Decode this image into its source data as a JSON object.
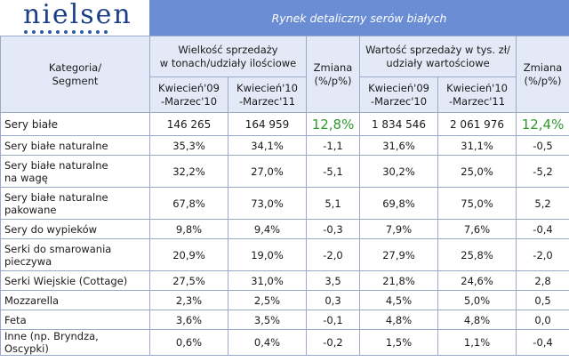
{
  "brand": {
    "logo_text": "nielsen"
  },
  "title": "Rynek detaliczny serów białych",
  "header": {
    "category_label": "Kategoria/\nSegment",
    "volume_group": "Wielkość sprzedaży\nw tonach/udziały ilościowe",
    "value_group": "Wartość sprzedaży w tys. zł/\nudziały wartościowe",
    "change_label": "Zmiana\n(%/p%)",
    "period_1": "Kwiecień'09\n-Marzec'10",
    "period_2": "Kwiecień'10\n-Marzec'11"
  },
  "rows": [
    {
      "category": "Sery białe",
      "vol_1": "146 265",
      "vol_2": "164 959",
      "vol_change": "12,8%",
      "val_1": "1 834 546",
      "val_2": "2 061 976",
      "val_change": "12,4%"
    },
    {
      "category": "Sery białe naturalne",
      "vol_1": "35,3%",
      "vol_2": "34,1%",
      "vol_change": "-1,1",
      "val_1": "31,6%",
      "val_2": "31,1%",
      "val_change": "-0,5"
    },
    {
      "category": "Sery białe naturalne\nna wagę",
      "vol_1": "32,2%",
      "vol_2": "27,0%",
      "vol_change": "-5,1",
      "val_1": "30,2%",
      "val_2": "25,0%",
      "val_change": "-5,2"
    },
    {
      "category": "Sery białe naturalne\npakowane",
      "vol_1": "67,8%",
      "vol_2": "73,0%",
      "vol_change": "5,1",
      "val_1": "69,8%",
      "val_2": "75,0%",
      "val_change": "5,2"
    },
    {
      "category": "Sery do wypieków",
      "vol_1": "9,8%",
      "vol_2": "9,4%",
      "vol_change": "-0,3",
      "val_1": "7,9%",
      "val_2": "7,6%",
      "val_change": "-0,4"
    },
    {
      "category": "Serki do smarowania\npieczywa",
      "vol_1": "20,9%",
      "vol_2": "19,0%",
      "vol_change": "-2,0",
      "val_1": "27,9%",
      "val_2": "25,8%",
      "val_change": "-2,0"
    },
    {
      "category": "Serki Wiejskie (Cottage)",
      "vol_1": "27,5%",
      "vol_2": "31,0%",
      "vol_change": "3,5",
      "val_1": "21,8%",
      "val_2": "24,6%",
      "val_change": "2,8"
    },
    {
      "category": "Mozzarella",
      "vol_1": "2,3%",
      "vol_2": "2,5%",
      "vol_change": "0,3",
      "val_1": "4,5%",
      "val_2": "5,0%",
      "val_change": "0,5"
    },
    {
      "category": "Feta",
      "vol_1": "3,6%",
      "vol_2": "3,5%",
      "vol_change": "-0,1",
      "val_1": "4,8%",
      "val_2": "4,8%",
      "val_change": "0,0"
    },
    {
      "category": "Inne (np. Bryndza, Oscypki)",
      "vol_1": "0,6%",
      "vol_2": "0,4%",
      "vol_change": "-0,2",
      "val_1": "1,5%",
      "val_2": "1,1%",
      "val_change": "-0,4"
    }
  ],
  "colors": {
    "title_bar": "#6a8dd3",
    "header_bg": "#e3e9f7",
    "logo": "#1b3f86",
    "highlight": "#2e9a2e"
  }
}
